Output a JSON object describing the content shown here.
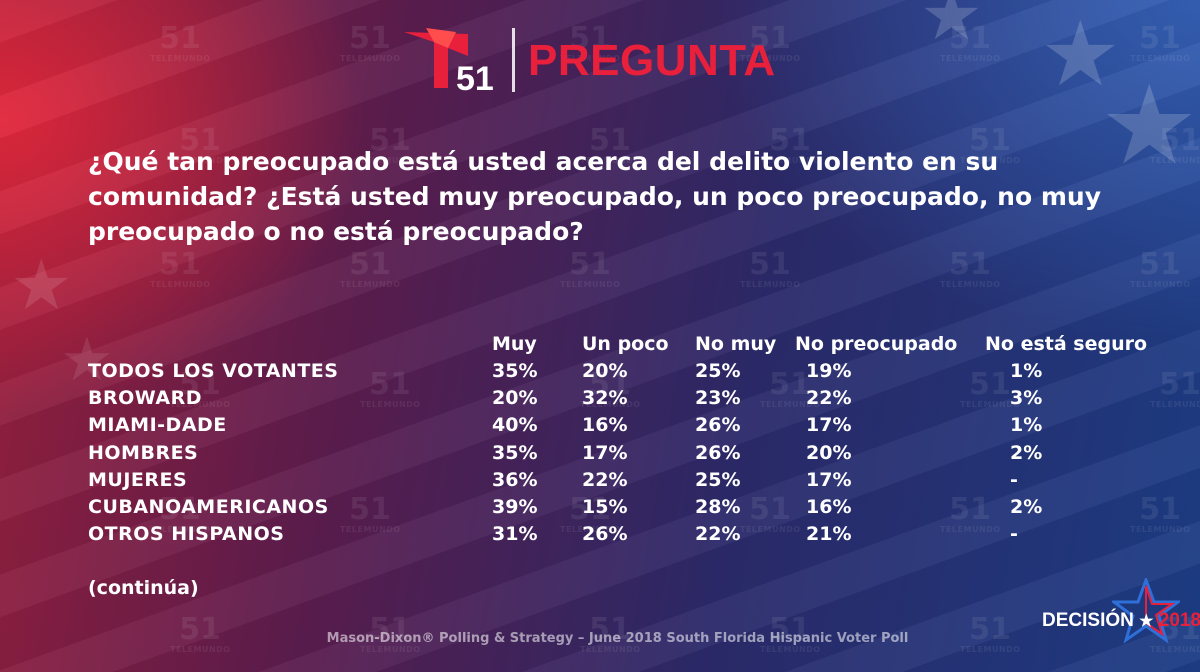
{
  "logo": {
    "number": "51",
    "icon": "telemundo-t-icon"
  },
  "header_title": "PREGUNTA",
  "question": "¿Qué tan preocupado está usted acerca del delito violento en su comunidad? ¿Está usted muy preocupado, un poco preocupado, no muy preocupado o no está preocupado?",
  "table": {
    "columns": [
      "Muy",
      "Un poco",
      "No muy",
      "No preocupado",
      "No está seguro"
    ],
    "rows": [
      {
        "label": "TODOS LOS VOTANTES",
        "values": [
          "35%",
          "20%",
          "25%",
          "19%",
          "1%"
        ]
      },
      {
        "label": "BROWARD",
        "values": [
          "20%",
          "32%",
          "23%",
          "22%",
          "3%"
        ]
      },
      {
        "label": "MIAMI-DADE",
        "values": [
          "40%",
          "16%",
          "26%",
          "17%",
          "1%"
        ]
      },
      {
        "label": "HOMBRES",
        "values": [
          "35%",
          "17%",
          "26%",
          "20%",
          "2%"
        ]
      },
      {
        "label": "MUJERES",
        "values": [
          "36%",
          "22%",
          "25%",
          "17%",
          "-"
        ]
      },
      {
        "label": "CUBANOAMERICANOS",
        "values": [
          "39%",
          "15%",
          "28%",
          "16%",
          "2%"
        ]
      },
      {
        "label": "OTROS HISPANOS",
        "values": [
          "31%",
          "26%",
          "22%",
          "21%",
          "-"
        ]
      }
    ]
  },
  "continua": "(continúa)",
  "footer": "Mason-Dixon® Polling & Strategy – June 2018 South Florida Hispanic Voter Poll",
  "decision_logo": {
    "word": "DECISIÓN",
    "year": "2018"
  },
  "watermark": {
    "number": "51",
    "brand": "TELEMUNDO"
  },
  "colors": {
    "brand_red": "#e8203c",
    "text": "#ffffff"
  }
}
